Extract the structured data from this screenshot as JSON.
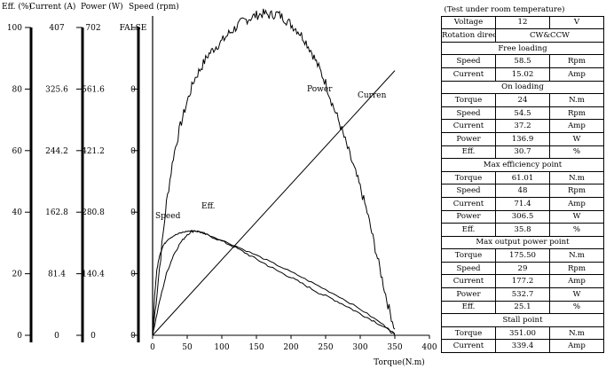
{
  "chart_data": {
    "type": "line",
    "title": "",
    "axes": [
      {
        "title": "Eff. (%)",
        "ticks": [
          "100",
          "80",
          "60",
          "40",
          "20",
          "0"
        ]
      },
      {
        "title": "Current (A)",
        "ticks": [
          "407",
          "325.6",
          "244.2",
          "162.8",
          "81.4",
          "0"
        ]
      },
      {
        "title": "Power (W)",
        "ticks": [
          "702",
          "561.6",
          "421.2",
          "280.8",
          "140.4",
          "0"
        ]
      },
      {
        "title": "Speed (rpm)",
        "ticks": [
          "FALSE",
          "0",
          "0",
          "0",
          "0",
          "0"
        ]
      }
    ],
    "xlabel": "Torque(N.m)",
    "xticks": [
      "0",
      "50",
      "100",
      "150",
      "200",
      "250",
      "300",
      "350",
      "400"
    ],
    "xlim": [
      0,
      400
    ],
    "ylim": [
      0,
      100
    ],
    "series": [
      {
        "name": "Power",
        "color": "#000000",
        "points": [
          [
            0,
            0
          ],
          [
            10,
            22
          ],
          [
            20,
            43
          ],
          [
            30,
            58
          ],
          [
            40,
            68
          ],
          [
            50,
            76
          ],
          [
            60,
            83
          ],
          [
            70,
            87
          ],
          [
            80,
            91
          ],
          [
            90,
            93.5
          ],
          [
            100,
            95.5
          ],
          [
            110,
            98
          ],
          [
            120,
            100
          ],
          [
            130,
            102
          ],
          [
            140,
            103
          ],
          [
            150,
            104
          ],
          [
            160,
            104.5
          ],
          [
            170,
            104
          ],
          [
            180,
            104.5
          ],
          [
            190,
            103
          ],
          [
            200,
            101
          ],
          [
            210,
            99
          ],
          [
            220,
            96
          ],
          [
            230,
            92
          ],
          [
            240,
            87
          ],
          [
            250,
            82
          ],
          [
            260,
            75
          ],
          [
            270,
            69
          ],
          [
            280,
            62
          ],
          [
            290,
            55
          ],
          [
            300,
            48
          ],
          [
            310,
            40
          ],
          [
            320,
            30
          ],
          [
            330,
            20
          ],
          [
            340,
            10
          ],
          [
            350,
            2
          ]
        ]
      },
      {
        "name": "Curren",
        "color": "#000000",
        "points": [
          [
            0,
            0
          ],
          [
            350,
            86
          ]
        ]
      },
      {
        "name": "Eff.",
        "color": "#000000",
        "points": [
          [
            0,
            0
          ],
          [
            10,
            11
          ],
          [
            20,
            20
          ],
          [
            30,
            26
          ],
          [
            40,
            30
          ],
          [
            50,
            32.8
          ],
          [
            60,
            34
          ],
          [
            70,
            33.5
          ],
          [
            80,
            32.5
          ],
          [
            100,
            30.6
          ],
          [
            120,
            28.5
          ],
          [
            140,
            26
          ],
          [
            160,
            23.5
          ],
          [
            180,
            21
          ],
          [
            200,
            18.8
          ],
          [
            220,
            16.3
          ],
          [
            240,
            13.8
          ],
          [
            260,
            11.8
          ],
          [
            280,
            9.5
          ],
          [
            300,
            7
          ],
          [
            320,
            4.6
          ],
          [
            340,
            2
          ],
          [
            350,
            0
          ]
        ]
      },
      {
        "name": "Speed",
        "color": "#000000",
        "points": [
          [
            0,
            0
          ],
          [
            3,
            13
          ],
          [
            6,
            21
          ],
          [
            10,
            26
          ],
          [
            15,
            29
          ],
          [
            22,
            31.2
          ],
          [
            30,
            32.3
          ],
          [
            40,
            33.2
          ],
          [
            50,
            33.8
          ],
          [
            60,
            34
          ],
          [
            70,
            33.5
          ],
          [
            90,
            31.8
          ],
          [
            120,
            29
          ],
          [
            150,
            26
          ],
          [
            180,
            22.8
          ],
          [
            210,
            19.5
          ],
          [
            240,
            16
          ],
          [
            270,
            12.5
          ],
          [
            300,
            8.5
          ],
          [
            330,
            4
          ],
          [
            350,
            0.5
          ]
        ]
      }
    ]
  },
  "spec_table": {
    "note": "(Test under room temperature)",
    "rows": [
      {
        "kind": "data",
        "name": "Voltage",
        "value": "12",
        "unit": "V"
      },
      {
        "kind": "data2",
        "name": "Rotation direction",
        "value": "CW&CCW"
      },
      {
        "kind": "section",
        "label": "Free loading"
      },
      {
        "kind": "data",
        "name": "Speed",
        "value": "58.5",
        "unit": "Rpm"
      },
      {
        "kind": "data",
        "name": "Current",
        "value": "15.02",
        "unit": "Amp"
      },
      {
        "kind": "section",
        "label": "On loading"
      },
      {
        "kind": "data",
        "name": "Torque",
        "value": "24",
        "unit": "N.m"
      },
      {
        "kind": "data",
        "name": "Speed",
        "value": "54.5",
        "unit": "Rpm"
      },
      {
        "kind": "data",
        "name": "Current",
        "value": "37.2",
        "unit": "Amp"
      },
      {
        "kind": "data",
        "name": "Power",
        "value": "136.9",
        "unit": "W"
      },
      {
        "kind": "data",
        "name": "Eff.",
        "value": "30.7",
        "unit": "%"
      },
      {
        "kind": "section",
        "label": "Max efficiency point"
      },
      {
        "kind": "data",
        "name": "Torque",
        "value": "61.01",
        "unit": "N.m"
      },
      {
        "kind": "data",
        "name": "Speed",
        "value": "48",
        "unit": "Rpm"
      },
      {
        "kind": "data",
        "name": "Current",
        "value": "71.4",
        "unit": "Amp"
      },
      {
        "kind": "data",
        "name": "Power",
        "value": "306.5",
        "unit": "W"
      },
      {
        "kind": "data",
        "name": "Eff.",
        "value": "35.8",
        "unit": "%"
      },
      {
        "kind": "section",
        "label": "Max output power point"
      },
      {
        "kind": "data",
        "name": "Torque",
        "value": "175.50",
        "unit": "N.m"
      },
      {
        "kind": "data",
        "name": "Speed",
        "value": "29",
        "unit": "Rpm"
      },
      {
        "kind": "data",
        "name": "Current",
        "value": "177.2",
        "unit": "Amp"
      },
      {
        "kind": "data",
        "name": "Power",
        "value": "532.7",
        "unit": "W"
      },
      {
        "kind": "data",
        "name": "Eff.",
        "value": "25.1",
        "unit": "%"
      },
      {
        "kind": "section",
        "label": "Stall point"
      },
      {
        "kind": "data",
        "name": "Torque",
        "value": "351.00",
        "unit": "N.m"
      },
      {
        "kind": "data",
        "name": "Current",
        "value": "339.4",
        "unit": "Amp"
      }
    ]
  }
}
